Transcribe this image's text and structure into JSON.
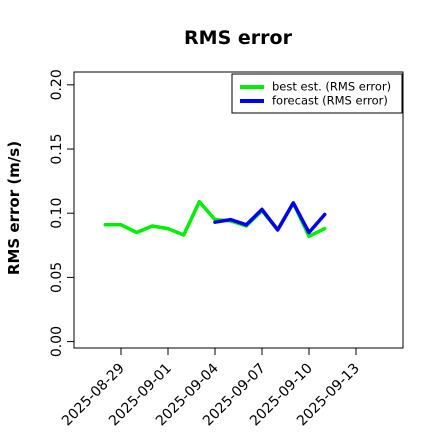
{
  "chart_data": {
    "type": "line",
    "title": "RMS error",
    "xlabel": "",
    "ylabel": "RMS error (m/s)",
    "xlim": [
      "2025-08-26",
      "2025-09-16"
    ],
    "ylim": [
      -0.005,
      0.21
    ],
    "xticks": [
      "2025-08-29",
      "2025-09-01",
      "2025-09-04",
      "2025-09-07",
      "2025-09-10",
      "2025-09-13"
    ],
    "xtick_highlight": "2025-09-04",
    "yticks": [
      "0.00",
      "0.05",
      "0.10",
      "0.15",
      "0.20"
    ],
    "grid": false,
    "legend_position": "top-right",
    "series": [
      {
        "name": "best est. (RMS error)",
        "color": "#00ee00",
        "x": [
          "2025-08-28",
          "2025-08-29",
          "2025-08-30",
          "2025-08-31",
          "2025-09-01",
          "2025-09-02",
          "2025-09-03",
          "2025-09-04",
          "2025-09-05",
          "2025-09-06",
          "2025-09-07",
          "2025-09-08",
          "2025-09-09",
          "2025-09-10",
          "2025-09-11"
        ],
        "values": [
          0.091,
          0.091,
          0.085,
          0.09,
          0.088,
          0.083,
          0.109,
          0.095,
          0.094,
          0.09,
          0.102,
          0.087,
          0.108,
          0.082,
          0.088
        ]
      },
      {
        "name": "forecast (RMS error)",
        "color": "#0000ee",
        "x": [
          "2025-09-04",
          "2025-09-05",
          "2025-09-06",
          "2025-09-07",
          "2025-09-08",
          "2025-09-09",
          "2025-09-10",
          "2025-09-11"
        ],
        "values": [
          0.093,
          0.095,
          0.091,
          0.103,
          0.087,
          0.108,
          0.085,
          0.099
        ]
      }
    ]
  }
}
